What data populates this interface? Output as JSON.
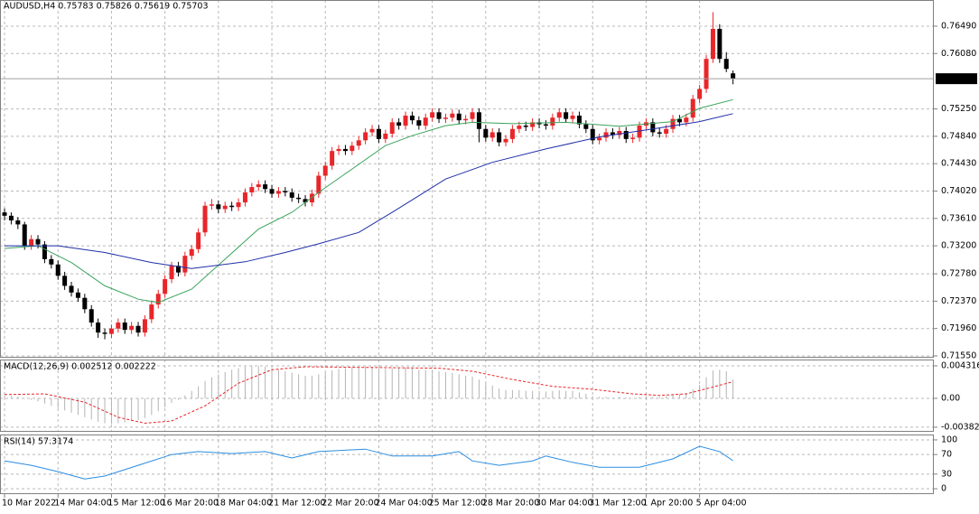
{
  "chart_data": [
    {
      "type": "candlestick",
      "title": "AUDUSD,H4  0.75783 0.75826 0.75619 0.75703",
      "up_color": "#e8262a",
      "down_color": "#000000",
      "grid": true,
      "xlim": [
        -0.68,
        139.05
      ],
      "ylim": [
        0.71523,
        0.76882
      ],
      "yticks": [
        {
          "value": 0.7649,
          "label": "0.76490"
        },
        {
          "value": 0.7608,
          "label": "0.76080"
        },
        {
          "value": 0.7525,
          "label": "0.75250"
        },
        {
          "value": 0.7484,
          "label": "0.74840"
        },
        {
          "value": 0.7443,
          "label": "0.74430"
        },
        {
          "value": 0.7402,
          "label": "0.74020"
        },
        {
          "value": 0.7361,
          "label": "0.73610"
        },
        {
          "value": 0.732,
          "label": "0.73200"
        },
        {
          "value": 0.7278,
          "label": "0.72780"
        },
        {
          "value": 0.7237,
          "label": "0.72370"
        },
        {
          "value": 0.7196,
          "label": "0.71960"
        },
        {
          "value": 0.7155,
          "label": "0.71550"
        }
      ],
      "xticks": [
        {
          "value": 0,
          "label": "10 Mar 2022"
        },
        {
          "value": 8,
          "label": "14 Mar 04:00"
        },
        {
          "value": 16,
          "label": "15 Mar 12:00"
        },
        {
          "value": 24,
          "label": "16 Mar 20:00"
        },
        {
          "value": 32,
          "label": "18 Mar 04:00"
        },
        {
          "value": 40,
          "label": "21 Mar 12:00"
        },
        {
          "value": 48,
          "label": "22 Mar 20:00"
        },
        {
          "value": 56,
          "label": "24 Mar 04:00"
        },
        {
          "value": 64,
          "label": "25 Mar 12:00"
        },
        {
          "value": 72,
          "label": "28 Mar 20:00"
        },
        {
          "value": 80,
          "label": "30 Mar 04:00"
        },
        {
          "value": 88,
          "label": "31 Mar 12:00"
        },
        {
          "value": 96,
          "label": "1 Apr 20:00"
        },
        {
          "value": 104,
          "label": "5 Apr 04:00"
        }
      ],
      "open": [
        0.737,
        0.7365,
        0.7358,
        0.7352,
        0.732,
        0.733,
        0.7322,
        0.73,
        0.7292,
        0.7275,
        0.726,
        0.725,
        0.7242,
        0.7225,
        0.7205,
        0.719,
        0.7188,
        0.7196,
        0.7205,
        0.7194,
        0.72,
        0.719,
        0.721,
        0.7232,
        0.7248,
        0.727,
        0.729,
        0.728,
        0.7305,
        0.7315,
        0.734,
        0.738,
        0.7382,
        0.7375,
        0.738,
        0.7378,
        0.7385,
        0.74,
        0.7408,
        0.7412,
        0.7405,
        0.7398,
        0.7402,
        0.74,
        0.7392,
        0.739,
        0.7385,
        0.7398,
        0.7425,
        0.744,
        0.7462,
        0.7465,
        0.7462,
        0.747,
        0.7478,
        0.749,
        0.7495,
        0.748,
        0.7488,
        0.7505,
        0.75,
        0.7515,
        0.7508,
        0.75,
        0.7512,
        0.752,
        0.751,
        0.7512,
        0.7518,
        0.7508,
        0.751,
        0.752,
        0.7495,
        0.7482,
        0.749,
        0.7475,
        0.748,
        0.7495,
        0.75,
        0.7498,
        0.7505,
        0.7502,
        0.75,
        0.7512,
        0.752,
        0.751,
        0.7515,
        0.7502,
        0.7495,
        0.7478,
        0.7482,
        0.749,
        0.7486,
        0.7492,
        0.748,
        0.7482,
        0.75,
        0.7505,
        0.749,
        0.7488,
        0.7495,
        0.751,
        0.7505,
        0.7512,
        0.754,
        0.7555,
        0.76,
        0.7645,
        0.76,
        0.75783
      ],
      "high": [
        0.7376,
        0.737,
        0.7363,
        0.7356,
        0.7336,
        0.7336,
        0.7327,
        0.7306,
        0.7298,
        0.7281,
        0.7266,
        0.7256,
        0.7248,
        0.7231,
        0.7211,
        0.7196,
        0.7202,
        0.7211,
        0.7211,
        0.7206,
        0.7206,
        0.7216,
        0.7238,
        0.7254,
        0.7276,
        0.7296,
        0.7296,
        0.7311,
        0.7321,
        0.7346,
        0.7386,
        0.739,
        0.7388,
        0.7386,
        0.7386,
        0.7391,
        0.7406,
        0.7414,
        0.7418,
        0.7418,
        0.7411,
        0.7408,
        0.7408,
        0.7406,
        0.7398,
        0.7396,
        0.7404,
        0.7431,
        0.7446,
        0.7468,
        0.7471,
        0.7471,
        0.7476,
        0.7484,
        0.7496,
        0.7501,
        0.7501,
        0.7494,
        0.7511,
        0.7511,
        0.7521,
        0.7521,
        0.7514,
        0.7518,
        0.7526,
        0.7526,
        0.7518,
        0.7524,
        0.7524,
        0.7516,
        0.7526,
        0.7526,
        0.7501,
        0.7496,
        0.7496,
        0.7486,
        0.7501,
        0.7506,
        0.7506,
        0.7511,
        0.7511,
        0.7508,
        0.7518,
        0.7526,
        0.7526,
        0.7521,
        0.7521,
        0.7508,
        0.7501,
        0.7488,
        0.7496,
        0.7496,
        0.7498,
        0.7498,
        0.7488,
        0.7506,
        0.7511,
        0.7511,
        0.7496,
        0.7501,
        0.7516,
        0.7516,
        0.7518,
        0.7546,
        0.7561,
        0.7606,
        0.767,
        0.7652,
        0.761,
        0.75826
      ],
      "low": [
        0.7358,
        0.7352,
        0.7345,
        0.7314,
        0.7314,
        0.7316,
        0.7294,
        0.7286,
        0.7269,
        0.7254,
        0.7244,
        0.7236,
        0.7219,
        0.7199,
        0.7182,
        0.718,
        0.7182,
        0.719,
        0.7188,
        0.7188,
        0.7184,
        0.7184,
        0.7204,
        0.7226,
        0.7242,
        0.7264,
        0.7274,
        0.7274,
        0.7299,
        0.7309,
        0.7334,
        0.7374,
        0.7369,
        0.7369,
        0.7372,
        0.7372,
        0.7379,
        0.7394,
        0.7402,
        0.7399,
        0.7392,
        0.7392,
        0.7394,
        0.7386,
        0.7384,
        0.7379,
        0.7379,
        0.7392,
        0.7419,
        0.7434,
        0.7456,
        0.7456,
        0.7456,
        0.7464,
        0.7472,
        0.7484,
        0.7474,
        0.7474,
        0.7482,
        0.7494,
        0.7494,
        0.7502,
        0.7494,
        0.7494,
        0.7506,
        0.7504,
        0.7504,
        0.7506,
        0.7502,
        0.7502,
        0.7504,
        0.7475,
        0.7476,
        0.7476,
        0.7469,
        0.7469,
        0.7474,
        0.7489,
        0.7492,
        0.7492,
        0.7496,
        0.7494,
        0.7494,
        0.7506,
        0.7504,
        0.7504,
        0.7496,
        0.7489,
        0.7472,
        0.7472,
        0.7476,
        0.748,
        0.748,
        0.7474,
        0.7474,
        0.7476,
        0.7494,
        0.7484,
        0.7482,
        0.7482,
        0.7489,
        0.7499,
        0.7499,
        0.7506,
        0.7534,
        0.7549,
        0.7594,
        0.7594,
        0.758,
        0.75619
      ],
      "close": [
        0.7365,
        0.7358,
        0.7352,
        0.732,
        0.733,
        0.7322,
        0.73,
        0.7292,
        0.7275,
        0.726,
        0.725,
        0.7242,
        0.7225,
        0.7205,
        0.719,
        0.7188,
        0.7196,
        0.7205,
        0.7194,
        0.72,
        0.719,
        0.721,
        0.7232,
        0.7248,
        0.727,
        0.729,
        0.728,
        0.7305,
        0.7315,
        0.734,
        0.738,
        0.7382,
        0.7375,
        0.738,
        0.7378,
        0.7385,
        0.74,
        0.7408,
        0.7412,
        0.7405,
        0.7398,
        0.7402,
        0.74,
        0.7392,
        0.739,
        0.7385,
        0.7398,
        0.7425,
        0.744,
        0.7462,
        0.7465,
        0.7462,
        0.747,
        0.7478,
        0.749,
        0.7495,
        0.748,
        0.7488,
        0.7505,
        0.75,
        0.7515,
        0.7508,
        0.75,
        0.7512,
        0.752,
        0.751,
        0.7512,
        0.7518,
        0.7508,
        0.751,
        0.752,
        0.7495,
        0.7482,
        0.749,
        0.7475,
        0.748,
        0.7495,
        0.75,
        0.7498,
        0.7505,
        0.7502,
        0.75,
        0.7512,
        0.752,
        0.751,
        0.7515,
        0.7502,
        0.7495,
        0.7478,
        0.7482,
        0.749,
        0.7486,
        0.7492,
        0.748,
        0.7482,
        0.75,
        0.7505,
        0.749,
        0.7488,
        0.7495,
        0.751,
        0.7505,
        0.7512,
        0.754,
        0.7555,
        0.76,
        0.7645,
        0.76,
        0.7585,
        0.75703
      ],
      "overlays": [
        {
          "color": "#3aa35a",
          "x": [
            0,
            5,
            10,
            15,
            20,
            23,
            28,
            33,
            38,
            43,
            47,
            52,
            57,
            61,
            66,
            70,
            76,
            84,
            92,
            100,
            104,
            109
          ],
          "values": [
            0.7316,
            0.732,
            0.7295,
            0.726,
            0.724,
            0.7235,
            0.7255,
            0.73,
            0.7345,
            0.737,
            0.74,
            0.7435,
            0.747,
            0.7485,
            0.75,
            0.7505,
            0.7503,
            0.7505,
            0.7499,
            0.7506,
            0.7526,
            0.7539
          ]
        },
        {
          "color": "#1f2fa8",
          "x": [
            0,
            8,
            15,
            22,
            28,
            36,
            42,
            47,
            53,
            58,
            62,
            66,
            73,
            81,
            89,
            97,
            104,
            109
          ],
          "values": [
            0.732,
            0.732,
            0.731,
            0.7295,
            0.7286,
            0.7296,
            0.731,
            0.7323,
            0.734,
            0.737,
            0.7395,
            0.742,
            0.7445,
            0.7465,
            0.7483,
            0.7495,
            0.7506,
            0.7518
          ]
        }
      ]
    },
    {
      "type": "macd",
      "title": "MACD(12,26,9) 0.002512 0.002222",
      "color": "#b4b4b4",
      "grid": true,
      "ylim": [
        -0.004436,
        0.005155
      ],
      "yticks": [
        0.004316,
        {
          "value": 0,
          "label": "0.00"
        },
        -0.003828
      ],
      "values": [
        0.0004,
        0.0003,
        0.0002,
        0,
        -0.0002,
        -0.0004,
        -0.0007,
        -0.001,
        -0.0013,
        -0.0016,
        -0.0019,
        -0.0022,
        -0.0025,
        -0.0028,
        -0.0031,
        -0.0033,
        -0.0034,
        -0.0033,
        -0.0032,
        -0.003,
        -0.0029,
        -0.0026,
        -0.0022,
        -0.0017,
        -0.0012,
        -0.0006,
        -0.0002,
        0.0004,
        0.001,
        0.0016,
        0.0023,
        0.0028,
        0.0032,
        0.0035,
        0.0038,
        0.004,
        0.0042,
        0.0043,
        0.0043,
        0.0042,
        0.004,
        0.0038,
        0.0036,
        0.0034,
        0.0032,
        0.003,
        0.003,
        0.0032,
        0.0034,
        0.0037,
        0.0039,
        0.004,
        0.0041,
        0.0041,
        0.0042,
        0.0042,
        0.004,
        0.0039,
        0.004,
        0.004,
        0.0041,
        0.004,
        0.0038,
        0.0038,
        0.0038,
        0.0036,
        0.0035,
        0.0034,
        0.0032,
        0.003,
        0.0029,
        0.0025,
        0.002,
        0.0017,
        0.0013,
        0.0011,
        0.0011,
        0.0011,
        0.001,
        0.001,
        0.001,
        0.0009,
        0.001,
        0.0011,
        0.001,
        0.001,
        0.0008,
        0.0006,
        0.0003,
        0.0002,
        0.0002,
        0.0001,
        0.0002,
        0.0001,
        0,
        0.0002,
        0.0003,
        0.0002,
        0.0002,
        0.0003,
        0.0005,
        0.0006,
        0.0007,
        0.0012,
        0.0018,
        0.0028,
        0.0037,
        0.0038,
        0.0036,
        0.002512
      ],
      "signal": {
        "color": "#e8262a",
        "x": [
          0,
          6,
          12,
          17,
          21,
          25,
          30,
          35,
          40,
          45,
          55,
          65,
          70,
          76,
          82,
          88,
          94,
          98,
          102,
          106,
          109
        ],
        "values": [
          0.0005,
          0.0006,
          -0.0005,
          -0.0025,
          -0.0033,
          -0.003,
          -0.001,
          0.002,
          0.0038,
          0.0042,
          0.0041,
          0.004,
          0.0036,
          0.0025,
          0.0016,
          0.0012,
          0.0006,
          0.0004,
          0.0006,
          0.0015,
          0.002222
        ]
      }
    },
    {
      "type": "line",
      "title": "RSI(14) 57.3174",
      "color": "#2a8de0",
      "grid": true,
      "ylim": [
        -11,
        111
      ],
      "yticks": [
        100,
        70,
        30,
        0
      ],
      "x": [
        0,
        4,
        8,
        12,
        15,
        20,
        25,
        29,
        34,
        39,
        43,
        47,
        54,
        58,
        64,
        68,
        70,
        74,
        79,
        81,
        85,
        89,
        95,
        100,
        104,
        107,
        109
      ],
      "values": [
        57,
        48,
        35,
        20,
        26,
        48,
        70,
        76,
        72,
        76,
        63,
        76,
        81,
        67,
        67,
        76,
        57,
        48,
        57,
        67,
        54,
        44,
        44,
        61,
        87,
        76,
        57.3174
      ]
    }
  ]
}
